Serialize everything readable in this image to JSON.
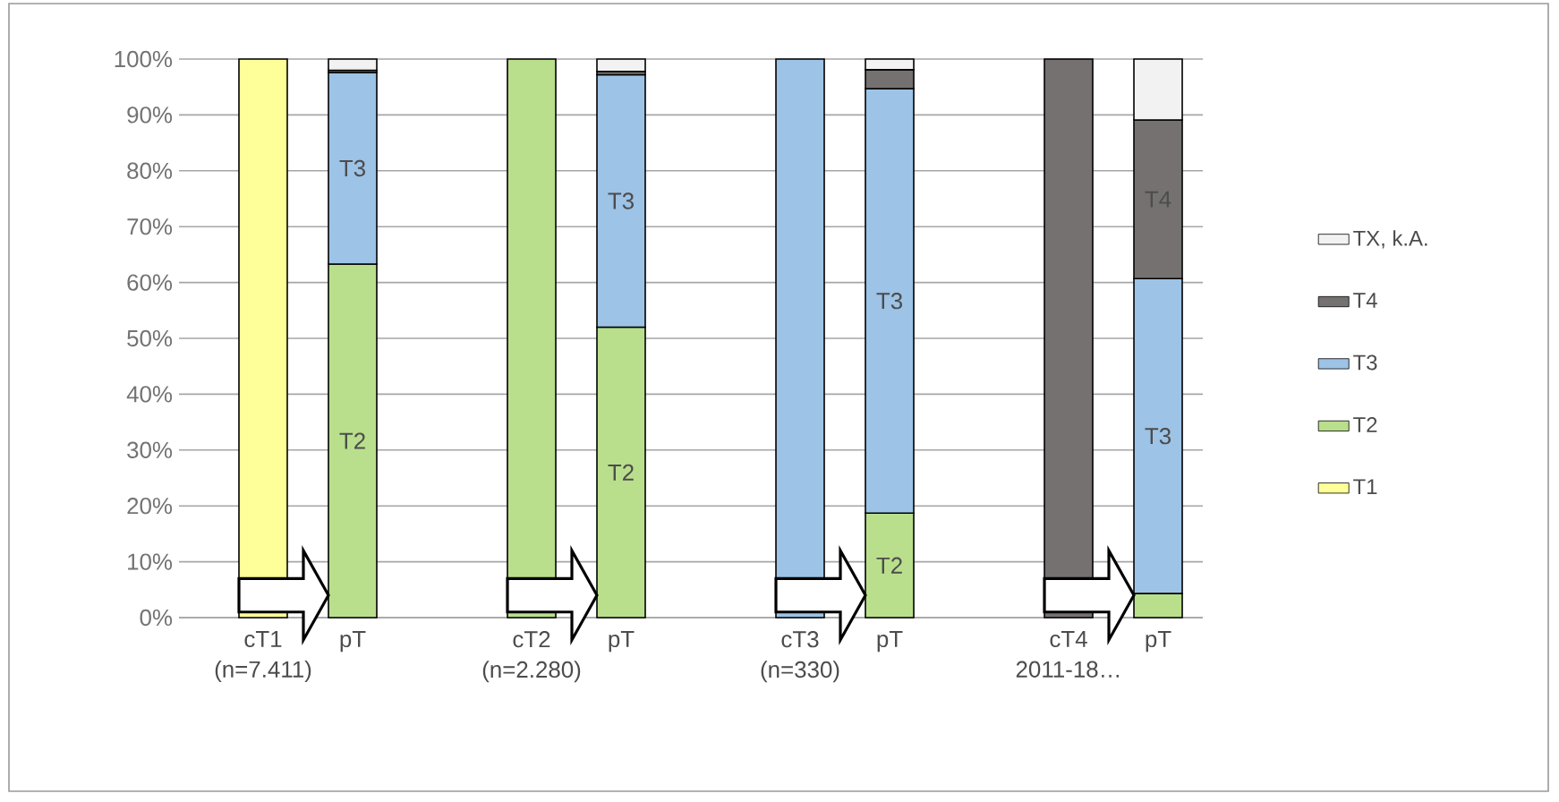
{
  "chart_data": {
    "type": "bar",
    "stacked": true,
    "categories": [
      "cT1 (n=7.411)",
      "pT",
      null,
      "cT2 (n=2.280)",
      "pT",
      null,
      "cT3 (n=330)",
      "pT",
      null,
      "cT4 2011-18…",
      "pT"
    ],
    "series": [
      {
        "name": "T1",
        "color": "#ffff99",
        "values": [
          100,
          null,
          null,
          null,
          null,
          null,
          null,
          null,
          null,
          null,
          null
        ]
      },
      {
        "name": "T2",
        "color": "#b9df8c",
        "values": [
          null,
          63.3,
          null,
          100,
          52.0,
          null,
          null,
          18.7,
          null,
          null,
          4.3
        ]
      },
      {
        "name": "T3",
        "color": "#9dc3e6",
        "values": [
          null,
          34.3,
          null,
          null,
          45.2,
          null,
          100,
          76.0,
          null,
          null,
          56.4
        ]
      },
      {
        "name": "T4",
        "color": "#767171",
        "values": [
          null,
          0.4,
          null,
          null,
          0.6,
          null,
          null,
          3.4,
          null,
          100,
          28.4
        ]
      },
      {
        "name": "TX, k.A.",
        "color": "#f2f2f2",
        "values": [
          null,
          2.0,
          null,
          null,
          2.2,
          null,
          null,
          1.9,
          null,
          null,
          10.9
        ]
      }
    ],
    "ylim": [
      0,
      100
    ],
    "yticks": [
      {
        "value": 0,
        "label": "0%"
      },
      {
        "value": 10,
        "label": "10%"
      },
      {
        "value": 20,
        "label": "20%"
      },
      {
        "value": 30,
        "label": "30%"
      },
      {
        "value": 40,
        "label": "40%"
      },
      {
        "value": 50,
        "label": "50%"
      },
      {
        "value": 60,
        "label": "60%"
      },
      {
        "value": 70,
        "label": "70%"
      },
      {
        "value": 80,
        "label": "80%"
      },
      {
        "value": 90,
        "label": "90%"
      },
      {
        "value": 100,
        "label": "100%"
      }
    ],
    "grid": "y",
    "legend": "right",
    "annotations": [
      "T3",
      "T2",
      "T3",
      "T2",
      "T3",
      "T2",
      "T4",
      "T3"
    ]
  }
}
